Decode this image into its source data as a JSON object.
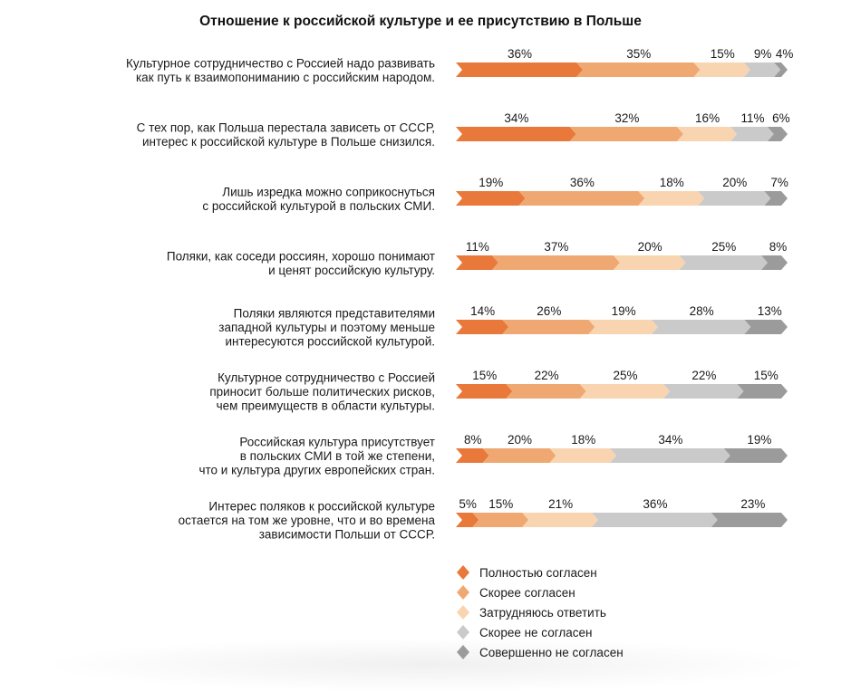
{
  "chart_data": {
    "type": "bar",
    "stacked": true,
    "orientation": "horizontal",
    "title": "Отношение к российской культуре и ее присутствию в Польше",
    "legend_position": "bottom-right",
    "categories": [
      [
        "Культурное сотрудничество с Россией надо развивать",
        "как путь к взаимопониманию с российским народом."
      ],
      [
        "С тех пор, как Польша перестала зависеть от СССР,",
        "интерес к российской культуре в Польше снизился."
      ],
      [
        "Лишь изредка можно соприкоснуться",
        "с российской культурой в польских СМИ."
      ],
      [
        "Поляки, как соседи россиян, хорошо понимают",
        "и ценят российскую культуру."
      ],
      [
        "Поляки являются представителями",
        "западной культуры и поэтому меньше",
        "интересуются российской культурой."
      ],
      [
        "Культурное сотрудничество с Россией",
        "приносит больше политических рисков,",
        "чем преимуществ в области культуры."
      ],
      [
        "Российская культура присутствует",
        "в польских СМИ в той же степени,",
        "что и культура других европейских стран."
      ],
      [
        "Интерес поляков к российской культуре",
        "остается на том же уровне, что и во времена",
        "зависимости Польши от СССР."
      ]
    ],
    "series": [
      {
        "name": "Полностью согласен",
        "color": "#e8793a",
        "values": [
          36,
          34,
          19,
          11,
          14,
          15,
          8,
          5
        ]
      },
      {
        "name": "Скорее согласен",
        "color": "#f0a872",
        "values": [
          35,
          32,
          36,
          37,
          26,
          22,
          20,
          15
        ]
      },
      {
        "name": "Затрудняюсь ответить",
        "color": "#f8d5b0",
        "values": [
          15,
          16,
          18,
          20,
          19,
          25,
          18,
          21
        ]
      },
      {
        "name": "Скорее не согласен",
        "color": "#cacaca",
        "values": [
          9,
          11,
          20,
          25,
          28,
          22,
          34,
          36
        ]
      },
      {
        "name": "Совершенно не согласен",
        "color": "#9b9b9b",
        "values": [
          4,
          6,
          7,
          8,
          13,
          15,
          19,
          23
        ]
      }
    ],
    "value_suffix": "%"
  }
}
